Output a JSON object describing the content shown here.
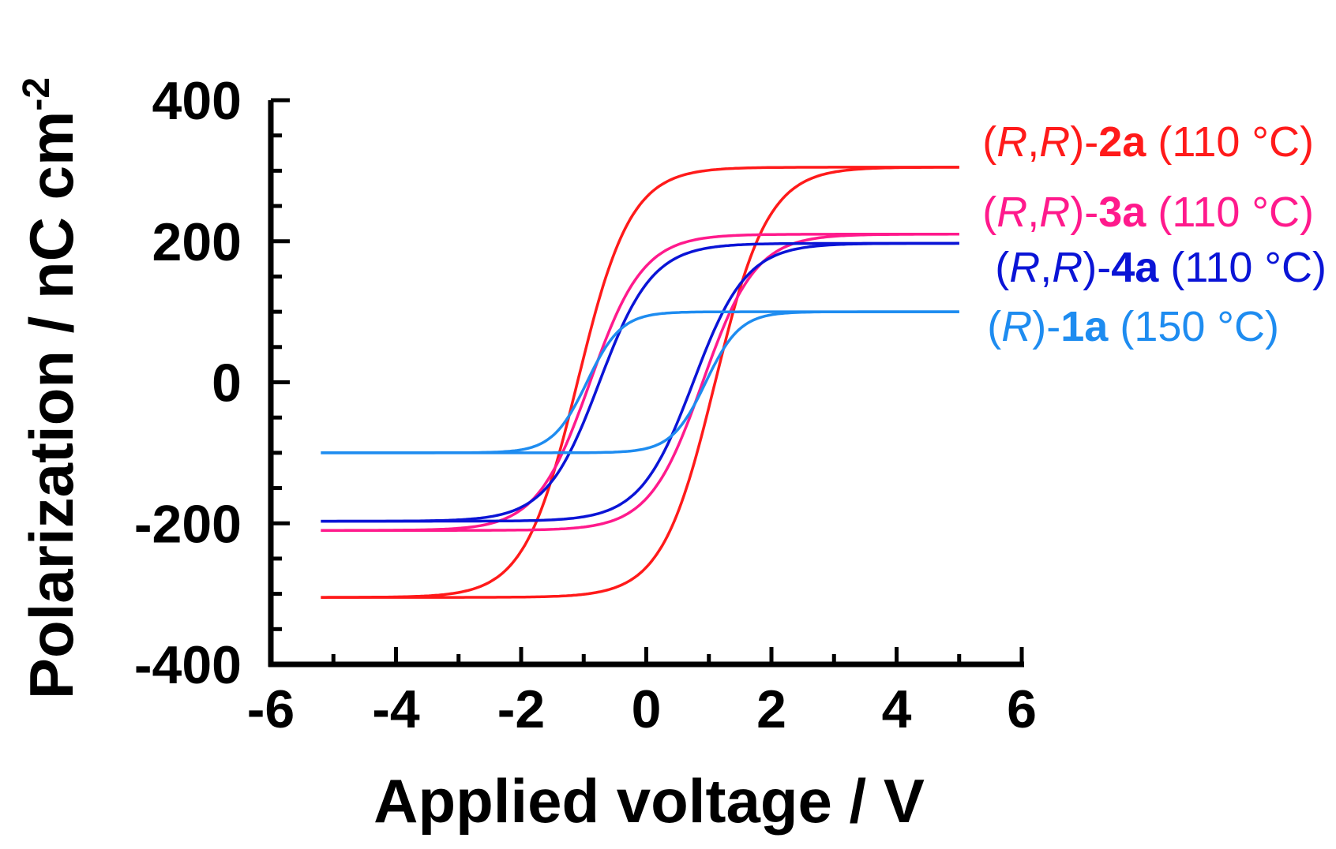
{
  "chart_data": {
    "type": "line",
    "title": "",
    "xlabel": "Applied voltage / V",
    "ylabel": "Polarization / nC cm",
    "ylabel_superscript": "-2",
    "xlim": [
      -6,
      6
    ],
    "ylim": [
      -400,
      400
    ],
    "x_ticks": [
      "-6",
      "-4",
      "-2",
      "0",
      "2",
      "4",
      "6"
    ],
    "y_ticks": [
      "400",
      "200",
      "0",
      "-200",
      "-400"
    ],
    "x_tick_values": [
      -6,
      -4,
      -2,
      0,
      2,
      4,
      6
    ],
    "y_tick_values": [
      400,
      200,
      0,
      -200,
      -400
    ],
    "grid": false,
    "legend_placement": "right",
    "series": [
      {
        "name": "(R,R)-2a (110 °C)",
        "label_parts": {
          "open": "(",
          "chiral": "R",
          "sep": ",",
          "chiral2": "R",
          "close": ")-",
          "compound": "2a",
          "condition": " (110 °C)"
        },
        "color": "#ff1a1a",
        "Ps": 305,
        "Vc": 1.1,
        "width": 0.85,
        "upper_branch": [
          [
            5.0,
            305
          ],
          [
            3.0,
            300
          ],
          [
            2.0,
            292
          ],
          [
            1.0,
            262
          ],
          [
            0.0,
            160
          ],
          [
            -1.0,
            -20
          ],
          [
            -2.0,
            -195
          ],
          [
            -3.0,
            -275
          ],
          [
            -5.2,
            -302
          ]
        ],
        "lower_branch": [
          [
            -5.2,
            -302
          ],
          [
            -3.0,
            -300
          ],
          [
            -2.0,
            -292
          ],
          [
            -1.0,
            -262
          ],
          [
            0.0,
            -160
          ],
          [
            1.0,
            20
          ],
          [
            2.0,
            195
          ],
          [
            3.0,
            275
          ],
          [
            5.0,
            305
          ]
        ]
      },
      {
        "name": "(R,R)-3a (110 °C)",
        "label_parts": {
          "open": "(",
          "chiral": "R",
          "sep": ",",
          "chiral2": "R",
          "close": ")-",
          "compound": "3a",
          "condition": " (110 °C)"
        },
        "color": "#ff1a8c",
        "Ps": 210,
        "Vc": 0.9,
        "width": 0.85,
        "upper_branch": [
          [
            5.0,
            210
          ],
          [
            2.0,
            200
          ],
          [
            1.0,
            185
          ],
          [
            0.0,
            115
          ],
          [
            -1.0,
            -40
          ],
          [
            -2.0,
            -160
          ],
          [
            -5.2,
            -208
          ]
        ],
        "lower_branch": [
          [
            -5.2,
            -208
          ],
          [
            -2.0,
            -200
          ],
          [
            -1.0,
            -185
          ],
          [
            0.0,
            -115
          ],
          [
            1.0,
            40
          ],
          [
            2.0,
            160
          ],
          [
            5.0,
            210
          ]
        ]
      },
      {
        "name": "(R,R)-4a (110 °C)",
        "label_parts": {
          "open": "(",
          "chiral": "R",
          "sep": ",",
          "chiral2": "R",
          "close": ")-",
          "compound": "4a",
          "condition": " (110 °C)"
        },
        "color": "#0a14d6",
        "Ps": 197,
        "Vc": 0.75,
        "width": 0.85,
        "upper_branch": [
          [
            5.0,
            197
          ],
          [
            2.0,
            185
          ],
          [
            1.0,
            170
          ],
          [
            0.0,
            115
          ],
          [
            -1.0,
            -35
          ],
          [
            -2.0,
            -150
          ],
          [
            -5.2,
            -196
          ]
        ],
        "lower_branch": [
          [
            -5.2,
            -196
          ],
          [
            -2.0,
            -185
          ],
          [
            -1.0,
            -170
          ],
          [
            0.0,
            -115
          ],
          [
            1.0,
            35
          ],
          [
            2.0,
            150
          ],
          [
            5.0,
            197
          ]
        ]
      },
      {
        "name": "(R)-1a (150 °C)",
        "label_parts": {
          "open": "(",
          "chiral": "R",
          "sep": "",
          "chiral2": "",
          "close": ")-",
          "compound": "1a",
          "condition": " (150 °C)"
        },
        "color": "#1e8cf0",
        "Ps": 100,
        "Vc": 0.95,
        "width": 0.55,
        "upper_branch": [
          [
            5.0,
            100
          ],
          [
            2.0,
            95
          ],
          [
            0.0,
            85
          ],
          [
            -1.0,
            15
          ],
          [
            -2.0,
            -70
          ],
          [
            -5.2,
            -100
          ]
        ],
        "lower_branch": [
          [
            -5.2,
            -100
          ],
          [
            -2.0,
            -95
          ],
          [
            0.0,
            -70
          ],
          [
            1.0,
            -15
          ],
          [
            2.0,
            70
          ],
          [
            5.0,
            100
          ]
        ]
      }
    ]
  }
}
